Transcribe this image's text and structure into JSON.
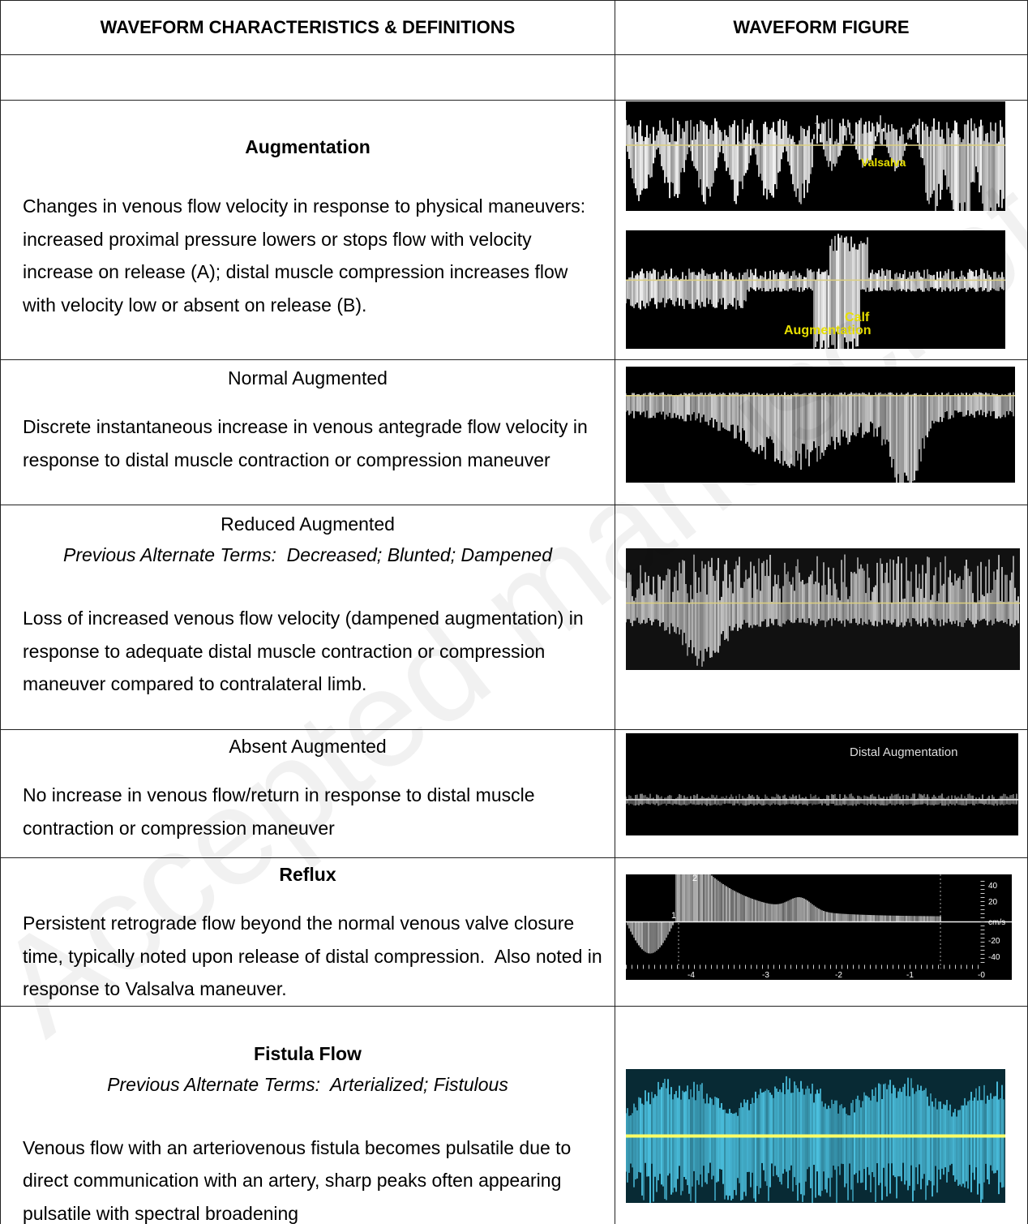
{
  "header": {
    "left": "WAVEFORM CHARACTERISTICS & DEFINITIONS",
    "right": "WAVEFORM FIGURE"
  },
  "watermark": "Accepted manuscript",
  "rows": [
    {
      "title": "Augmentation",
      "description": "Changes in venous flow velocity in response to physical maneuvers: increased proximal pressure lowers or stops flow with velocity increase on release (A); distal muscle compression increases flow with velocity low or absent on release (B).",
      "figure_labels": [
        "Valsalva",
        "Calf",
        "Augmentation"
      ]
    },
    {
      "title": "Normal Augmented",
      "description": "Discrete instantaneous increase in venous antegrade flow velocity in response to distal muscle contraction or compression maneuver"
    },
    {
      "title": "Reduced Augmented",
      "alternate_terms": "Previous Alternate Terms:  Decreased; Blunted; Dampened",
      "description": "Loss of increased venous flow velocity (dampened augmentation) in response to adequate distal muscle contraction or compression maneuver compared to contralateral limb."
    },
    {
      "title": "Absent Augmented",
      "description": "No increase in venous flow/return in response to distal muscle contraction or compression maneuver",
      "figure_labels": [
        "Distal Augmentation"
      ]
    },
    {
      "title": "Reflux",
      "description": "Persistent retrograde flow beyond the normal venous valve closure time, typically noted upon release of distal compression.  Also noted in response to Valsalva maneuver.",
      "figure_labels": [
        "1",
        "2",
        "40",
        "20",
        "cm/s",
        "-20",
        "-40",
        "-4",
        "-3",
        "-2",
        "-1",
        "-0"
      ]
    },
    {
      "title": "Fistula Flow",
      "alternate_terms": "Previous Alternate Terms:  Arterialized; Fistulous",
      "description": "Venous flow with an arteriovenous fistula becomes pulsatile due to direct communication with an artery, sharp peaks often appearing pulsatile with spectral broadening"
    }
  ]
}
